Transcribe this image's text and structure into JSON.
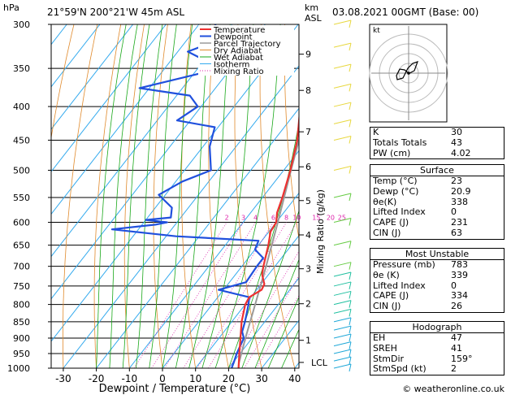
{
  "header": {
    "hpa_label": "hPa",
    "location": "21°59'N 200°21'W 45m ASL",
    "km_label": "km",
    "asl_label": "ASL",
    "date": "03.08.2021 00GMT (Base: 00)"
  },
  "footer": {
    "credit": "© weatheronline.co.uk"
  },
  "colors": {
    "temperature": "#ee3030",
    "dewpoint": "#2050dd",
    "parcel": "#9a9a9a",
    "dry_adiabat": "#e08a2c",
    "wet_adiabat": "#1aa81a",
    "isotherm": "#33aaee",
    "mixing_ratio": "#dd22aa"
  },
  "chart_data": {
    "type": "line",
    "xlabel": "Dewpoint / Temperature (°C)",
    "ylabel": "Mixing Ratio (g/kg)",
    "xlim": [
      -35,
      40
    ],
    "ylim": [
      1000,
      300
    ],
    "y_scale": "log-pressure, skewed temperature axis",
    "x_ticks": [
      -30,
      -20,
      -10,
      0,
      10,
      20,
      30,
      40
    ],
    "pressure_ticks": [
      300,
      350,
      400,
      450,
      500,
      550,
      600,
      650,
      700,
      750,
      800,
      850,
      900,
      950,
      1000
    ],
    "km_ticks": [
      {
        "label": "1",
        "p": 907
      },
      {
        "label": "2",
        "p": 798
      },
      {
        "label": "3",
        "p": 706
      },
      {
        "label": "4",
        "p": 627
      },
      {
        "label": "5",
        "p": 556
      },
      {
        "label": "6",
        "p": 494
      },
      {
        "label": "7",
        "p": 437
      },
      {
        "label": "8",
        "p": 378
      },
      {
        "label": "9",
        "p": 333
      },
      {
        "label": "LCL",
        "p": 980
      }
    ],
    "mixing_ratio_labels": [
      "2",
      "3",
      "4",
      "6",
      "8",
      "10",
      "15",
      "20",
      "25"
    ],
    "legend": [
      "Temperature",
      "Dewpoint",
      "Parcel Trajectory",
      "Dry Adiabat",
      "Wet Adiabat",
      "Isotherm",
      "Mixing Ratio"
    ],
    "series": [
      {
        "name": "Temperature",
        "points": [
          [
            1000,
            23
          ],
          [
            950,
            19.8
          ],
          [
            900,
            16.5
          ],
          [
            850,
            13
          ],
          [
            800,
            10
          ],
          [
            780,
            9.5
          ],
          [
            760,
            11.5
          ],
          [
            745,
            11
          ],
          [
            720,
            8
          ],
          [
            700,
            6.5
          ],
          [
            650,
            3
          ],
          [
            620,
            0.5
          ],
          [
            600,
            0
          ],
          [
            580,
            -2
          ],
          [
            550,
            -4
          ],
          [
            500,
            -8
          ],
          [
            450,
            -13
          ],
          [
            400,
            -20
          ],
          [
            350,
            -27.5
          ],
          [
            300,
            -37
          ]
        ]
      },
      {
        "name": "Dewpoint",
        "points": [
          [
            1000,
            20.9
          ],
          [
            980,
            20.2
          ],
          [
            950,
            19
          ],
          [
            900,
            17.5
          ],
          [
            880,
            15.5
          ],
          [
            850,
            14
          ],
          [
            800,
            11
          ],
          [
            780,
            9.5
          ],
          [
            760,
            -1.5
          ],
          [
            740,
            5
          ],
          [
            700,
            4.5
          ],
          [
            680,
            4.5
          ],
          [
            660,
            0
          ],
          [
            640,
            -1
          ],
          [
            630,
            -27
          ],
          [
            615,
            -48
          ],
          [
            605,
            -36
          ],
          [
            600,
            -33
          ],
          [
            595,
            -40
          ],
          [
            590,
            -33
          ],
          [
            570,
            -35
          ],
          [
            545,
            -42
          ],
          [
            520,
            -38
          ],
          [
            500,
            -32
          ],
          [
            460,
            -38
          ],
          [
            430,
            -41
          ],
          [
            420,
            -54
          ],
          [
            400,
            -51
          ],
          [
            385,
            -56
          ],
          [
            375,
            -73
          ],
          [
            350,
            -53
          ],
          [
            330,
            -67
          ],
          [
            320,
            -62
          ],
          [
            312,
            -66
          ],
          [
            308,
            -64
          ],
          [
            300,
            -65
          ]
        ]
      },
      {
        "name": "Parcel Trajectory",
        "points": [
          [
            1000,
            23
          ],
          [
            980,
            21.8
          ],
          [
            900,
            18
          ],
          [
            800,
            13
          ],
          [
            700,
            7.3
          ],
          [
            600,
            0.5
          ],
          [
            500,
            -7.8
          ],
          [
            450,
            -12.5
          ],
          [
            400,
            -18
          ],
          [
            350,
            -25
          ],
          [
            300,
            -33
          ]
        ]
      }
    ],
    "hodograph": {
      "label": "kt"
    }
  },
  "indices": {
    "basic": [
      {
        "name": "K",
        "value": "30"
      },
      {
        "name": "Totals Totals",
        "value": "43"
      },
      {
        "name": "PW (cm)",
        "value": "4.02"
      }
    ],
    "surface": {
      "title": "Surface",
      "rows": [
        {
          "name": "Temp (°C)",
          "value": "23"
        },
        {
          "name": "Dewp (°C)",
          "value": "20.9"
        },
        {
          "name": "θe(K)",
          "value": "338"
        },
        {
          "name": "Lifted Index",
          "value": "0"
        },
        {
          "name": "CAPE (J)",
          "value": "231"
        },
        {
          "name": "CIN (J)",
          "value": "63"
        }
      ]
    },
    "most_unstable": {
      "title": "Most Unstable",
      "rows": [
        {
          "name": "Pressure (mb)",
          "value": "783"
        },
        {
          "name": "θe (K)",
          "value": "339"
        },
        {
          "name": "Lifted Index",
          "value": "0"
        },
        {
          "name": "CAPE (J)",
          "value": "334"
        },
        {
          "name": "CIN (J)",
          "value": "26"
        }
      ]
    },
    "hodograph": {
      "title": "Hodograph",
      "rows": [
        {
          "name": "EH",
          "value": "47"
        },
        {
          "name": "SREH",
          "value": "41"
        },
        {
          "name": "StmDir",
          "value": "159°"
        },
        {
          "name": "StmSpd (kt)",
          "value": "2"
        }
      ]
    }
  }
}
